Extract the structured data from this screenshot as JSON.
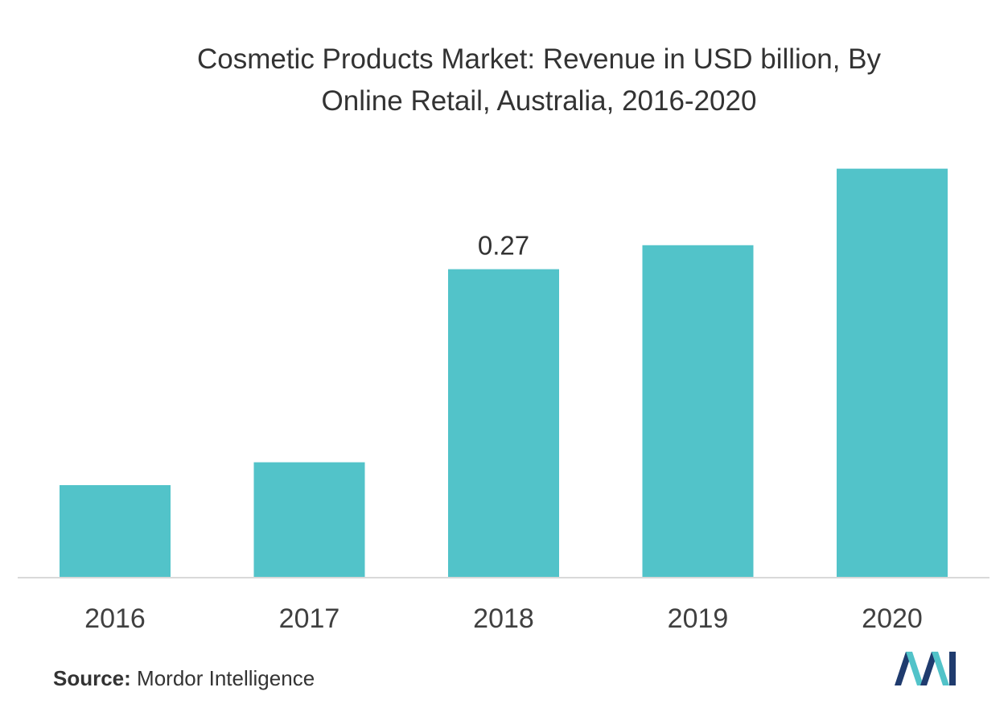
{
  "chart_data": {
    "type": "bar",
    "title": "Cosmetic Products Market: Revenue in USD billion, By\nOnline Retail,  Australia, 2016-2020",
    "xlabel": "",
    "ylabel": "",
    "categories": [
      "2016",
      "2017",
      "2018",
      "2019",
      "2020"
    ],
    "values": [
      0.081,
      0.101,
      0.27,
      0.291,
      0.358
    ],
    "data_labels": [
      "",
      "",
      "0.27",
      "",
      ""
    ],
    "ylim": [
      0,
      0.4
    ],
    "grid": false,
    "legend": "none",
    "bar_color": "#52c3c9"
  },
  "source": {
    "label": "Source:",
    "text": " Mordor Intelligence"
  },
  "brand": {
    "logo_icon": "mordor-intelligence-logo-icon",
    "colors": [
      "#1f3b6e",
      "#52c3c9"
    ]
  }
}
